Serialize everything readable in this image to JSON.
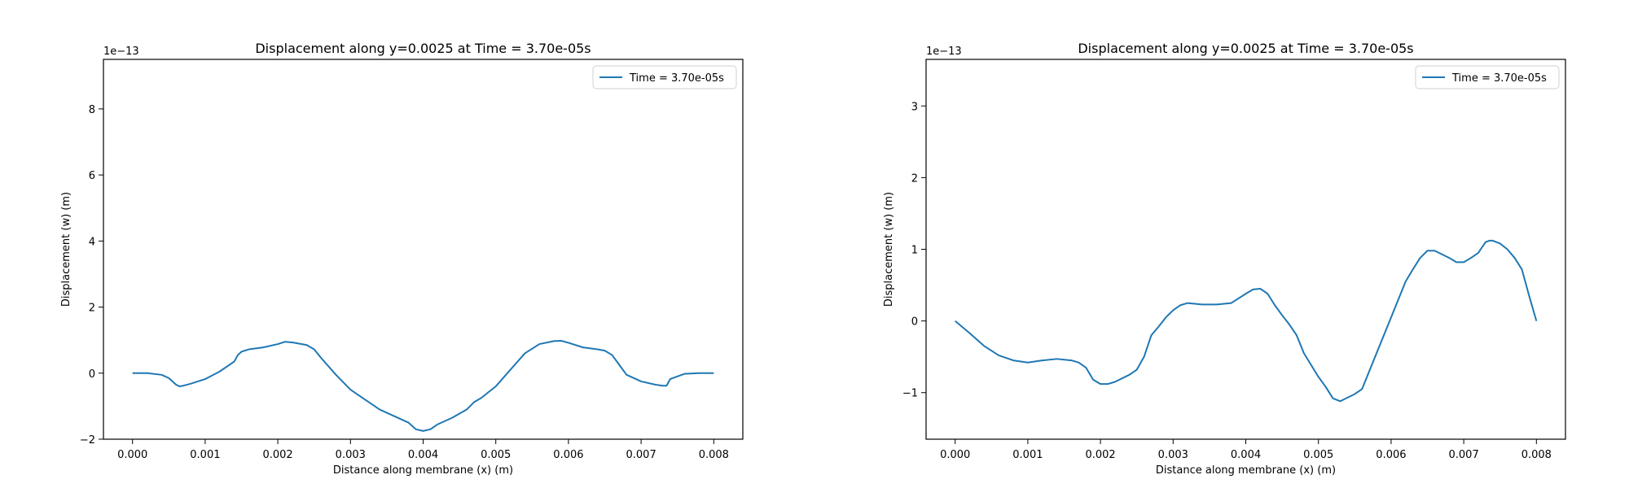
{
  "chart_data": [
    {
      "type": "line",
      "title": "Displacement along y=0.0025 at Time = 3.70e-05s",
      "xlabel": "Distance along membrane (x) (m)",
      "ylabel": "Displacement (w) (m)",
      "y_offset_label": "1e−13",
      "xlim": [
        -0.0004,
        0.0084
      ],
      "ylim": [
        -2.0,
        9.5
      ],
      "x_ticks": [
        0.0,
        0.001,
        0.002,
        0.003,
        0.004,
        0.005,
        0.006,
        0.007,
        0.008
      ],
      "x_tick_labels": [
        "0.000",
        "0.001",
        "0.002",
        "0.003",
        "0.004",
        "0.005",
        "0.006",
        "0.007",
        "0.008"
      ],
      "y_ticks": [
        -2,
        0,
        2,
        4,
        6,
        8
      ],
      "y_tick_labels": [
        "−2",
        "0",
        "2",
        "4",
        "6",
        "8"
      ],
      "grid": false,
      "legend_position": "top-right",
      "series": [
        {
          "name": "Time = 3.70e-05s",
          "color": "#1f77b4",
          "x": [
            0.0,
            0.0002,
            0.0004,
            0.0005,
            0.0006,
            0.00065,
            0.0007,
            0.0008,
            0.001,
            0.0012,
            0.0014,
            0.00145,
            0.0015,
            0.0016,
            0.0018,
            0.002,
            0.0021,
            0.0022,
            0.0024,
            0.0025,
            0.0026,
            0.0028,
            0.003,
            0.0032,
            0.0033,
            0.0034,
            0.0036,
            0.0038,
            0.0039,
            0.004,
            0.0041,
            0.0042,
            0.0044,
            0.0046,
            0.0047,
            0.0048,
            0.005,
            0.0052,
            0.0054,
            0.0056,
            0.0058,
            0.0059,
            0.006,
            0.0062,
            0.0064,
            0.0065,
            0.0066,
            0.0068,
            0.007,
            0.0072,
            0.0073,
            0.00735,
            0.0074,
            0.0076,
            0.0078,
            0.008
          ],
          "y": [
            0.0,
            0.0,
            -0.05,
            -0.15,
            -0.35,
            -0.4,
            -0.38,
            -0.32,
            -0.18,
            0.05,
            0.35,
            0.55,
            0.65,
            0.72,
            0.78,
            0.88,
            0.95,
            0.93,
            0.85,
            0.72,
            0.45,
            -0.05,
            -0.5,
            -0.8,
            -0.95,
            -1.1,
            -1.3,
            -1.5,
            -1.7,
            -1.75,
            -1.7,
            -1.55,
            -1.35,
            -1.1,
            -0.88,
            -0.75,
            -0.4,
            0.1,
            0.6,
            0.88,
            0.97,
            0.98,
            0.92,
            0.78,
            0.72,
            0.68,
            0.55,
            -0.05,
            -0.25,
            -0.35,
            -0.38,
            -0.38,
            -0.18,
            -0.02,
            0.0,
            0.0
          ]
        }
      ]
    },
    {
      "type": "line",
      "title": "Displacement along y=0.0025 at Time = 3.70e-05s",
      "xlabel": "Distance along membrane (x) (m)",
      "ylabel": "Displacement (w) (m)",
      "y_offset_label": "1e−13",
      "xlim": [
        -0.0004,
        0.0084
      ],
      "ylim": [
        -1.65,
        3.65
      ],
      "x_ticks": [
        0.0,
        0.001,
        0.002,
        0.003,
        0.004,
        0.005,
        0.006,
        0.007,
        0.008
      ],
      "x_tick_labels": [
        "0.000",
        "0.001",
        "0.002",
        "0.003",
        "0.004",
        "0.005",
        "0.006",
        "0.007",
        "0.008"
      ],
      "y_ticks": [
        -1,
        0,
        1,
        2,
        3
      ],
      "y_tick_labels": [
        "−1",
        "0",
        "1",
        "2",
        "3"
      ],
      "grid": false,
      "legend_position": "top-right",
      "series": [
        {
          "name": "Time = 3.70e-05s",
          "color": "#1f77b4",
          "x": [
            0.0,
            0.0002,
            0.0004,
            0.0006,
            0.0008,
            0.001,
            0.0012,
            0.0014,
            0.0016,
            0.0017,
            0.0018,
            0.0019,
            0.002,
            0.0021,
            0.0022,
            0.0024,
            0.0025,
            0.0026,
            0.0027,
            0.0028,
            0.0029,
            0.003,
            0.0031,
            0.0032,
            0.0034,
            0.0036,
            0.0038,
            0.004,
            0.0041,
            0.0042,
            0.0043,
            0.0044,
            0.0045,
            0.0046,
            0.0047,
            0.0048,
            0.005,
            0.0051,
            0.0052,
            0.0053,
            0.0054,
            0.0055,
            0.0056,
            0.0058,
            0.0059,
            0.006,
            0.0062,
            0.0063,
            0.0064,
            0.0065,
            0.0066,
            0.0068,
            0.0069,
            0.007,
            0.0071,
            0.0072,
            0.0073,
            0.00735,
            0.0074,
            0.0075,
            0.0076,
            0.0077,
            0.0078,
            0.0079,
            0.008
          ],
          "y": [
            0.0,
            -0.17,
            -0.35,
            -0.48,
            -0.55,
            -0.58,
            -0.55,
            -0.53,
            -0.55,
            -0.58,
            -0.65,
            -0.82,
            -0.88,
            -0.88,
            -0.85,
            -0.75,
            -0.68,
            -0.5,
            -0.2,
            -0.08,
            0.05,
            0.15,
            0.22,
            0.25,
            0.23,
            0.23,
            0.25,
            0.38,
            0.44,
            0.45,
            0.38,
            0.22,
            0.08,
            -0.05,
            -0.2,
            -0.45,
            -0.78,
            -0.92,
            -1.08,
            -1.12,
            -1.07,
            -1.02,
            -0.95,
            -0.45,
            -0.2,
            0.05,
            0.55,
            0.72,
            0.88,
            0.98,
            0.98,
            0.88,
            0.82,
            0.82,
            0.88,
            0.95,
            1.1,
            1.12,
            1.12,
            1.08,
            1.0,
            0.88,
            0.72,
            0.35,
            0.0
          ]
        }
      ]
    }
  ]
}
